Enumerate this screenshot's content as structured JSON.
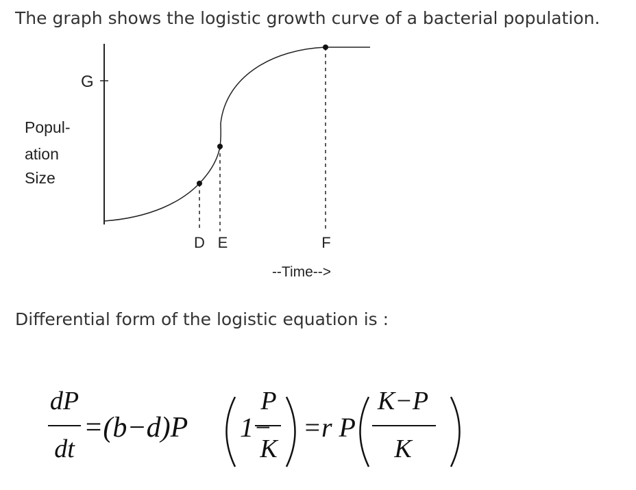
{
  "header": {
    "text": "The graph shows the logistic growth curve of a bacterial population."
  },
  "figure": {
    "y_label_lines": [
      "Popul-",
      "ation",
      "Size"
    ],
    "g_label": "G",
    "x_labels": [
      "D",
      "E",
      "F"
    ],
    "x_axis_label": "--Time-->"
  },
  "body": {
    "text": "Differential form of the logistic equation is :"
  },
  "equation": {
    "lhs_numerator": "dP",
    "lhs_denominator": "dt",
    "middle": "=(b−d)P",
    "paren_term": "1−",
    "frac1_numerator": "P",
    "frac1_denominator": "K",
    "rhs": "=r P",
    "frac2_numerator": "K−P",
    "frac2_denominator": "K"
  }
}
